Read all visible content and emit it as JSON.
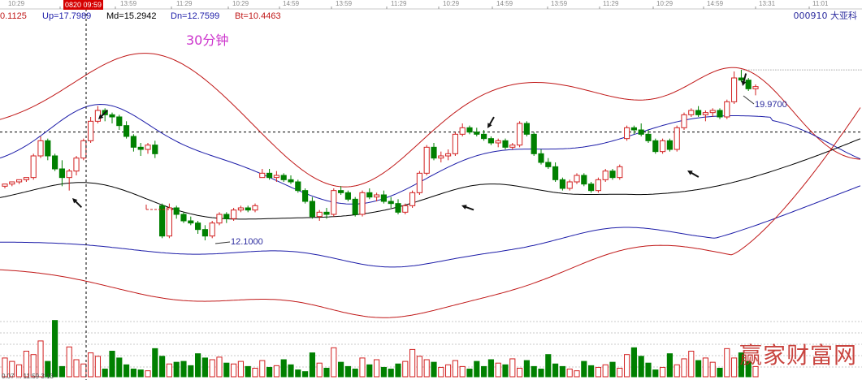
{
  "time_axis": {
    "highlight": "0820 09:59",
    "ticks": [
      "10:29",
      "13:59",
      "11:29",
      "10:29",
      "14:59",
      "13:59",
      "11:29",
      "10:29",
      "14:59",
      "13:59",
      "11:29",
      "10:29",
      "14:59",
      "13:31",
      "11:01"
    ]
  },
  "header": {
    "left_value": "0.1125",
    "up": "Up=17.7989",
    "md": "Md=15.2942",
    "dn": "Dn=12.7599",
    "bt": "Bt=10.4463"
  },
  "period_label": "30分钟",
  "stock": "000910 大亚科",
  "annotations": {
    "high_price": "19.9700",
    "low_price": "12.1000"
  },
  "watermark": "赢家财富网",
  "bottom_text": "0.07 ... 11:59 3:13",
  "colors": {
    "up_candle": "#d22020",
    "down_candle": "#008000",
    "mid_line": "#000000",
    "inner_band": "#1c1ca8",
    "outer_band": "#c01818",
    "dashed_line": "#000000",
    "cursor_line": "#000000",
    "grid": "#c8c8c8",
    "stock_label": "#2b2b9e"
  },
  "chart_data": {
    "type": "candlestick",
    "title": "",
    "series": [
      {
        "name": "Up",
        "values": [
          17.7989
        ]
      },
      {
        "name": "Md",
        "values": [
          15.2942
        ]
      },
      {
        "name": "Dn",
        "values": [
          12.7599
        ]
      },
      {
        "name": "Bt",
        "values": [
          10.4463
        ]
      }
    ],
    "price_range": [
      8.5,
      22.3
    ],
    "high_marker": 19.97,
    "low_marker": 12.1,
    "horizontal_reference_price": 17.1,
    "high_reference_price": 19.97,
    "candles": [
      [
        14.6,
        14.7,
        14.5,
        14.7
      ],
      [
        14.7,
        14.8,
        14.6,
        14.8
      ],
      [
        14.8,
        14.9,
        14.7,
        14.9
      ],
      [
        14.9,
        15.0,
        14.8,
        15.0
      ],
      [
        15.0,
        16.1,
        14.9,
        16.0
      ],
      [
        16.0,
        16.9,
        15.9,
        16.7
      ],
      [
        16.7,
        16.8,
        15.8,
        16.0
      ],
      [
        16.0,
        16.1,
        15.3,
        15.4
      ],
      [
        15.4,
        15.8,
        14.6,
        15.0
      ],
      [
        15.0,
        15.4,
        14.4,
        15.3
      ],
      [
        15.3,
        16.0,
        15.1,
        15.9
      ],
      [
        15.9,
        16.8,
        15.8,
        16.7
      ],
      [
        16.7,
        17.8,
        16.6,
        17.6
      ],
      [
        17.6,
        18.3,
        17.5,
        18.1
      ],
      [
        18.1,
        18.2,
        17.6,
        17.9
      ],
      [
        17.9,
        18.0,
        17.5,
        17.8
      ],
      [
        17.8,
        17.9,
        17.2,
        17.4
      ],
      [
        17.4,
        17.6,
        16.8,
        16.9
      ],
      [
        16.9,
        17.0,
        16.2,
        16.4
      ],
      [
        16.4,
        16.6,
        16.0,
        16.3
      ],
      [
        16.3,
        16.6,
        16.1,
        16.5
      ],
      [
        16.5,
        16.7,
        15.9,
        16.1
      ],
      [
        13.7,
        13.8,
        12.2,
        12.3
      ],
      [
        12.3,
        13.8,
        12.2,
        13.6
      ],
      [
        13.6,
        13.7,
        13.1,
        13.3
      ],
      [
        13.3,
        13.4,
        12.9,
        13.0
      ],
      [
        13.0,
        13.2,
        12.8,
        12.9
      ],
      [
        12.9,
        13.0,
        12.4,
        12.6
      ],
      [
        12.6,
        12.8,
        12.1,
        12.3
      ],
      [
        12.3,
        13.0,
        12.2,
        12.9
      ],
      [
        12.9,
        13.4,
        12.8,
        13.3
      ],
      [
        13.3,
        13.4,
        12.9,
        13.1
      ],
      [
        13.1,
        13.6,
        13.0,
        13.5
      ],
      [
        13.5,
        13.7,
        13.4,
        13.6
      ],
      [
        13.6,
        13.7,
        13.4,
        13.5
      ],
      [
        13.5,
        13.8,
        13.4,
        13.7
      ],
      [
        15.0,
        15.4,
        15.0,
        15.2
      ],
      [
        15.2,
        15.4,
        14.9,
        15.0
      ],
      [
        15.0,
        15.3,
        14.8,
        15.1
      ],
      [
        15.1,
        15.2,
        14.8,
        14.9
      ],
      [
        14.9,
        15.1,
        14.7,
        14.8
      ],
      [
        14.8,
        14.9,
        14.3,
        14.4
      ],
      [
        14.4,
        14.5,
        13.8,
        13.9
      ],
      [
        13.9,
        14.1,
        13.1,
        13.2
      ],
      [
        13.2,
        13.5,
        13.0,
        13.4
      ],
      [
        13.4,
        13.6,
        13.1,
        13.3
      ],
      [
        13.3,
        14.5,
        13.2,
        14.4
      ],
      [
        14.4,
        14.6,
        14.2,
        14.3
      ],
      [
        14.3,
        14.4,
        13.9,
        14.0
      ],
      [
        14.0,
        14.1,
        13.2,
        13.3
      ],
      [
        13.3,
        14.4,
        13.2,
        14.3
      ],
      [
        14.3,
        14.5,
        14.0,
        14.1
      ],
      [
        14.1,
        14.3,
        13.9,
        14.2
      ],
      [
        14.2,
        14.4,
        13.8,
        13.9
      ],
      [
        13.9,
        14.1,
        13.6,
        13.8
      ],
      [
        13.8,
        14.0,
        13.3,
        13.4
      ],
      [
        13.4,
        13.8,
        13.3,
        13.7
      ],
      [
        13.7,
        14.4,
        13.6,
        14.3
      ],
      [
        14.3,
        15.3,
        14.2,
        15.2
      ],
      [
        15.2,
        16.5,
        15.1,
        16.4
      ],
      [
        16.4,
        16.6,
        15.8,
        15.9
      ],
      [
        15.9,
        16.2,
        15.7,
        16.0
      ],
      [
        16.0,
        16.3,
        15.8,
        16.1
      ],
      [
        16.1,
        17.1,
        16.0,
        17.0
      ],
      [
        17.0,
        17.5,
        16.9,
        17.3
      ],
      [
        17.3,
        17.4,
        17.0,
        17.1
      ],
      [
        17.1,
        17.3,
        16.9,
        17.0
      ],
      [
        17.0,
        17.2,
        16.7,
        16.8
      ],
      [
        16.8,
        16.9,
        16.5,
        16.6
      ],
      [
        16.6,
        16.8,
        16.4,
        16.7
      ],
      [
        16.7,
        16.8,
        16.3,
        16.4
      ],
      [
        16.4,
        16.6,
        16.3,
        16.5
      ],
      [
        16.5,
        17.6,
        16.4,
        17.5
      ],
      [
        17.5,
        17.6,
        16.9,
        17.0
      ],
      [
        17.0,
        17.1,
        16.0,
        16.1
      ],
      [
        16.1,
        16.3,
        15.6,
        15.7
      ],
      [
        15.7,
        15.9,
        15.4,
        15.5
      ],
      [
        15.5,
        15.7,
        14.8,
        14.9
      ],
      [
        14.9,
        15.0,
        14.4,
        14.5
      ],
      [
        14.5,
        14.9,
        14.4,
        14.8
      ],
      [
        14.8,
        15.2,
        14.7,
        15.1
      ],
      [
        15.1,
        15.2,
        14.6,
        14.7
      ],
      [
        14.7,
        14.8,
        14.3,
        14.4
      ],
      [
        14.4,
        15.0,
        14.3,
        14.9
      ],
      [
        14.9,
        15.4,
        14.8,
        15.3
      ],
      [
        15.3,
        15.4,
        14.9,
        15.0
      ],
      [
        15.0,
        15.6,
        14.9,
        15.5
      ],
      [
        16.8,
        17.4,
        16.7,
        17.3
      ],
      [
        17.3,
        17.4,
        17.0,
        17.2
      ],
      [
        17.2,
        17.5,
        16.9,
        17.0
      ],
      [
        17.0,
        17.2,
        16.6,
        16.7
      ],
      [
        16.7,
        16.8,
        16.1,
        16.2
      ],
      [
        16.2,
        16.8,
        16.1,
        16.7
      ],
      [
        16.7,
        16.8,
        16.2,
        16.3
      ],
      [
        16.3,
        17.4,
        16.2,
        17.3
      ],
      [
        17.3,
        18.0,
        17.2,
        17.9
      ],
      [
        17.9,
        18.2,
        17.8,
        18.1
      ],
      [
        18.1,
        18.3,
        17.8,
        17.9
      ],
      [
        17.9,
        18.1,
        17.6,
        18.0
      ],
      [
        18.0,
        18.2,
        17.8,
        18.1
      ],
      [
        18.1,
        18.2,
        17.7,
        17.8
      ],
      [
        17.8,
        18.6,
        17.7,
        18.5
      ],
      [
        18.5,
        19.9,
        18.4,
        19.6
      ],
      [
        19.6,
        19.97,
        19.4,
        19.5
      ],
      [
        19.5,
        19.6,
        19.0,
        19.1
      ],
      [
        19.1,
        19.3,
        18.8,
        19.2
      ]
    ],
    "volumes": [
      22,
      18,
      14,
      30,
      26,
      42,
      18,
      66,
      12,
      35,
      20,
      15,
      28,
      24,
      9,
      30,
      22,
      14,
      9,
      8,
      7,
      33,
      24,
      15,
      17,
      18,
      13,
      27,
      22,
      20,
      23,
      16,
      15,
      18,
      12,
      10,
      19,
      11,
      13,
      20,
      14,
      8,
      6,
      28,
      16,
      10,
      34,
      17,
      12,
      9,
      22,
      14,
      20,
      11,
      9,
      15,
      18,
      32,
      24,
      20,
      17,
      11,
      14,
      19,
      12,
      9,
      18,
      12,
      20,
      16,
      14,
      21,
      10,
      19,
      12,
      9,
      26,
      15,
      12,
      9,
      7,
      18,
      13,
      11,
      14,
      17,
      10,
      26,
      34,
      24,
      16,
      8,
      11,
      27,
      14,
      21,
      30,
      19,
      22,
      17,
      10,
      33,
      22,
      28,
      18,
      12
    ]
  }
}
